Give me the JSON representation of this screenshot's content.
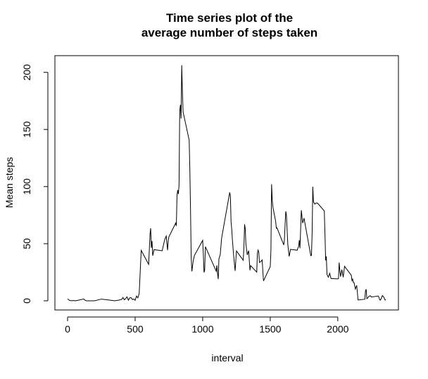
{
  "chart_data": {
    "type": "line",
    "title": "Time series plot of the",
    "subtitle": "average number of steps taken",
    "xlabel": "interval",
    "ylabel": "Mean steps",
    "xlim": [
      0,
      2355
    ],
    "ylim": [
      0,
      206
    ],
    "xticks": [
      0,
      500,
      1000,
      1500,
      2000
    ],
    "yticks": [
      0,
      50,
      100,
      150,
      200
    ],
    "grid": false,
    "line_color": "#000000",
    "series": [
      {
        "x": [
          0,
          15,
          30,
          45,
          60,
          120,
          130,
          140,
          200,
          250,
          300,
          350,
          380,
          400,
          410,
          420,
          430,
          440,
          450,
          460,
          470,
          480,
          490,
          500,
          510,
          520,
          530,
          545,
          600,
          610,
          615,
          620,
          625,
          630,
          640,
          700,
          720,
          730,
          740,
          745,
          750,
          800,
          805,
          810,
          815,
          820,
          825,
          830,
          835,
          840,
          845,
          850,
          855,
          900,
          905,
          910,
          915,
          920,
          930,
          940,
          1000,
          1005,
          1010,
          1015,
          1020,
          1100,
          1105,
          1110,
          1115,
          1120,
          1130,
          1140,
          1200,
          1205,
          1210,
          1215,
          1220,
          1230,
          1240,
          1250,
          1300,
          1305,
          1310,
          1315,
          1320,
          1330,
          1340,
          1345,
          1350,
          1355,
          1400,
          1405,
          1410,
          1415,
          1420,
          1430,
          1440,
          1450,
          1500,
          1505,
          1510,
          1515,
          1520,
          1530,
          1540,
          1545,
          1550,
          1600,
          1605,
          1610,
          1615,
          1620,
          1630,
          1640,
          1650,
          1700,
          1705,
          1710,
          1715,
          1720,
          1730,
          1740,
          1750,
          1800,
          1805,
          1810,
          1815,
          1820,
          1830,
          1840,
          1850,
          1900,
          1905,
          1910,
          1915,
          1920,
          1930,
          1940,
          1950,
          2000,
          2005,
          2010,
          2015,
          2020,
          2030,
          2040,
          2050,
          2100,
          2105,
          2110,
          2115,
          2120,
          2130,
          2140,
          2150,
          2200,
          2205,
          2210,
          2215,
          2220,
          2230,
          2240,
          2250,
          2300,
          2305,
          2310,
          2315,
          2320,
          2330,
          2340,
          2350,
          2355
        ],
        "y": [
          1.7,
          0.3,
          0.1,
          0.2,
          0.0,
          1.6,
          0.4,
          0.0,
          0.0,
          1.5,
          0.8,
          0.0,
          0.6,
          1.2,
          2.9,
          0.9,
          2.0,
          3.5,
          0.5,
          2.6,
          2.7,
          1.1,
          1.6,
          0.4,
          4.2,
          2.6,
          6.4,
          44.2,
          31.9,
          58.0,
          63.5,
          46.4,
          52.4,
          39.5,
          44.8,
          43.8,
          54.1,
          56.7,
          44.3,
          52.6,
          56.0,
          68.0,
          65.6,
          92.3,
          96.9,
          93.4,
          101.4,
          166.2,
          171.6,
          159.6,
          206.2,
          182.6,
          165.4,
          140.6,
          114.2,
          80.2,
          37.3,
          25.8,
          35.2,
          40.0,
          52.9,
          40.0,
          24.8,
          27.2,
          47.4,
          25.9,
          31.0,
          23.9,
          19.0,
          36.5,
          40.6,
          54.8,
          94.9,
          92.0,
          69.0,
          62.6,
          53.2,
          38.4,
          26.2,
          43.6,
          35.5,
          46.6,
          67.0,
          63.2,
          49.5,
          40.2,
          43.9,
          35.3,
          26.7,
          30.8,
          25.1,
          41.6,
          44.4,
          42.6,
          33.6,
          34.4,
          35.8,
          17.4,
          30.0,
          43.8,
          102.1,
          87.8,
          81.9,
          75.7,
          69.6,
          63.6,
          63.9,
          48.9,
          53.8,
          66.9,
          78.4,
          74.6,
          49.3,
          38.8,
          45.0,
          44.3,
          46.4,
          47.5,
          53.1,
          46.0,
          79.3,
          68.0,
          72.4,
          39.5,
          39.8,
          59.3,
          99.9,
          86.7,
          84.6,
          85.7,
          85.5,
          78.7,
          58.6,
          35.4,
          38.9,
          23.1,
          20.7,
          24.0,
          19.5,
          19.2,
          19.4,
          33.5,
          26.8,
          21.2,
          27.3,
          20.6,
          30.2,
          22.3,
          17.7,
          19.0,
          16.0,
          16.0,
          10.3,
          13.5,
          0.7,
          1.4,
          8.7,
          10.1,
          1.9,
          2.3,
          3.9,
          4.4,
          3.3,
          4.2,
          2.9,
          0.9,
          0.6,
          1.6,
          4.6,
          3.3,
          0.7,
          1.1
        ]
      }
    ]
  }
}
